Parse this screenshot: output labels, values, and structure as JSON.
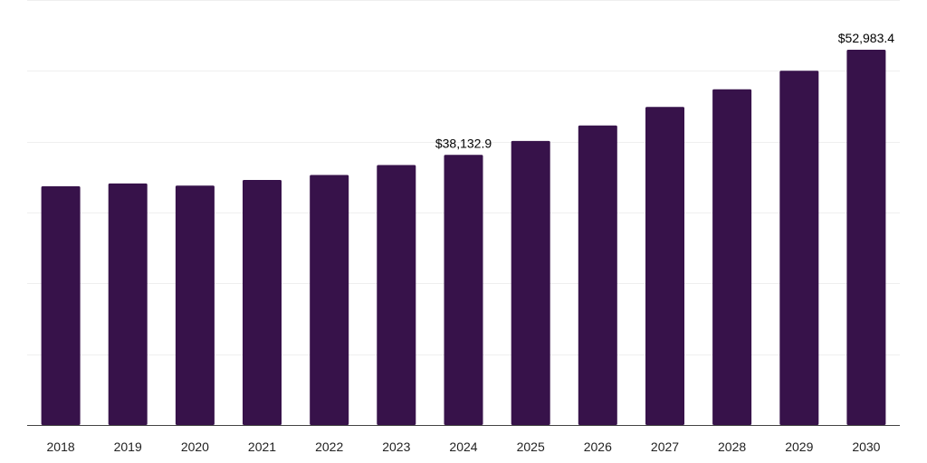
{
  "chart_data": {
    "type": "bar",
    "categories": [
      "2018",
      "2019",
      "2020",
      "2021",
      "2022",
      "2023",
      "2024",
      "2025",
      "2026",
      "2027",
      "2028",
      "2029",
      "2030"
    ],
    "values": [
      33700,
      34100,
      33800,
      34600,
      35300,
      36700,
      38132.9,
      40100,
      42300,
      44900,
      47400,
      50000,
      52983.4
    ],
    "data_labels": [
      {
        "index": 6,
        "text": "$38,132.9"
      },
      {
        "index": 12,
        "text": "$52,983.4"
      }
    ],
    "title": "",
    "xlabel": "",
    "ylabel": "",
    "ylim": [
      0,
      60000
    ],
    "grid": true,
    "legend": "none",
    "colors": {
      "bar": "#37124a",
      "grid": "#efefef",
      "axis": "#444444",
      "text": "#222222"
    }
  }
}
